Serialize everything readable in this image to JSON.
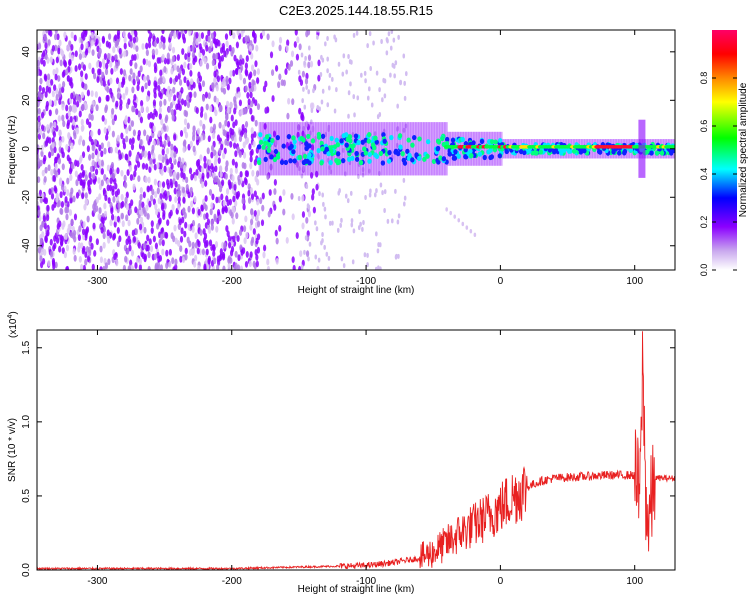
{
  "title": "C2E3.2025.144.18.55.R15",
  "chart_data": [
    {
      "type": "heatmap",
      "xlabel": "Height of straight line (km)",
      "ylabel": "Frequency (Hz)",
      "xlim": [
        -345,
        130
      ],
      "ylim": [
        -50,
        49
      ],
      "x_ticks": [
        -300,
        -200,
        -100,
        0,
        100
      ],
      "y_ticks": [
        -40,
        -20,
        0,
        20,
        40
      ],
      "colorbar": {
        "label": "Normalized spectral amplitude",
        "range": [
          0.0,
          1.0
        ],
        "ticks": [
          "0.0",
          "0.2",
          "0.4",
          "0.6",
          "0.8"
        ],
        "colors": [
          "#ffffff",
          "#c9a8ee",
          "#8b00ff",
          "#0000ff",
          "#00ffff",
          "#00ff00",
          "#ffff00",
          "#ff8800",
          "#ff0000",
          "#ff0066"
        ]
      },
      "description_features": {
        "noise_region_x": [
          -345,
          -180
        ],
        "signal_band_center_hz": 0,
        "signal_start_x": -180,
        "tone_at_x": 105
      }
    },
    {
      "type": "line",
      "xlabel": "Height of straight line (km)",
      "ylabel": "SNR (10 * v/v)",
      "y_scale_label": "(x10",
      "y_scale_exponent": "4",
      "y_scale_close": ")",
      "xlim": [
        -345,
        130
      ],
      "ylim": [
        0,
        1.62
      ],
      "x_ticks": [
        -300,
        -200,
        -100,
        0,
        100
      ],
      "y_ticks": [
        "0.0",
        "0.5",
        "1.0",
        "1.5"
      ],
      "series_color": "#e82020",
      "envelope_x": [
        -345,
        -300,
        -250,
        -200,
        -150,
        -100,
        -80,
        -60,
        -50,
        -40,
        -30,
        -20,
        -10,
        0,
        10,
        20,
        30,
        40,
        60,
        80,
        100,
        104,
        106,
        108,
        110,
        115,
        130
      ],
      "envelope_y": [
        0.01,
        0.01,
        0.01,
        0.01,
        0.02,
        0.03,
        0.05,
        0.08,
        0.12,
        0.18,
        0.25,
        0.3,
        0.36,
        0.42,
        0.5,
        0.56,
        0.6,
        0.62,
        0.63,
        0.64,
        0.64,
        0.5,
        1.45,
        0.55,
        0.3,
        0.62,
        0.62
      ]
    }
  ]
}
